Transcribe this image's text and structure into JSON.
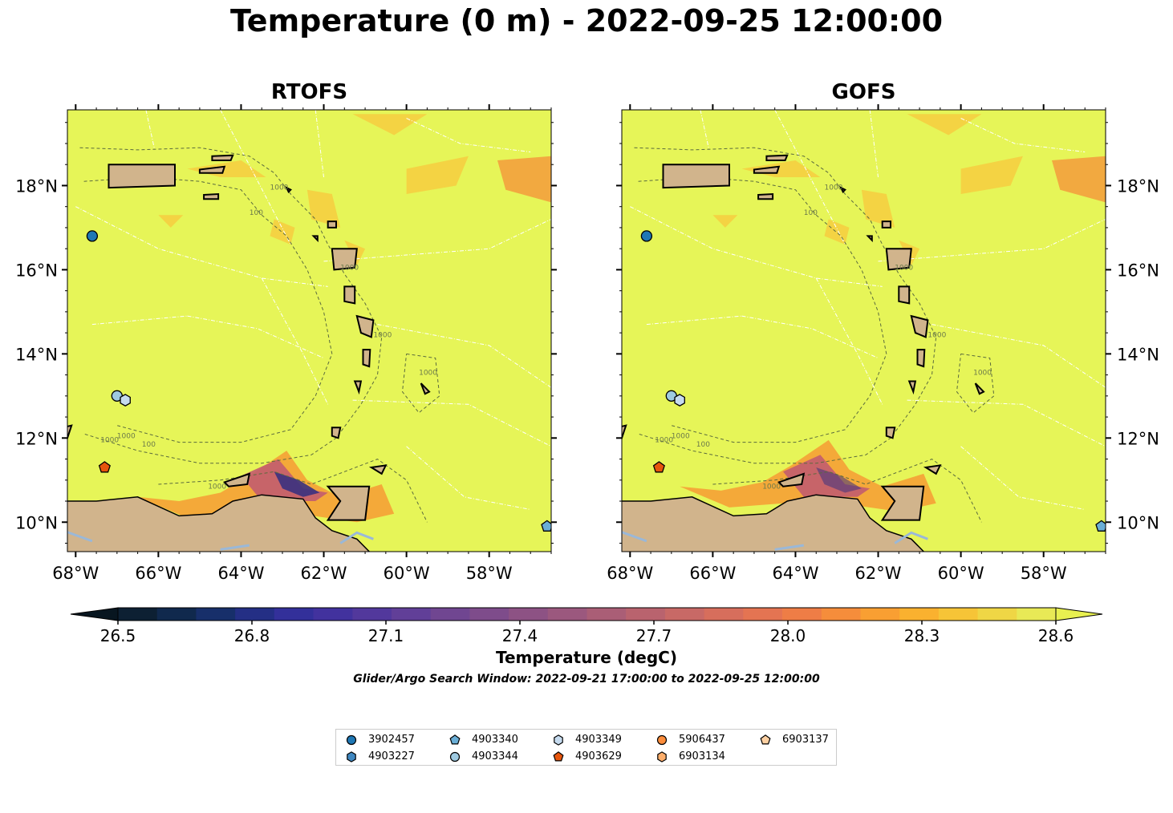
{
  "title": "Temperature (0 m) - 2022-09-25 12:00:00",
  "chart_data": [
    {
      "type": "heatmap",
      "title": "RTOFS",
      "variable": "Temperature (0 m)",
      "x_ticks": [
        "68°W",
        "66°W",
        "64°W",
        "62°W",
        "60°W",
        "58°W"
      ],
      "y_ticks": [
        "10°N",
        "12°N",
        "14°N",
        "16°N",
        "18°N"
      ],
      "xlim": [
        -68.2,
        -56.5
      ],
      "ylim": [
        9.3,
        19.8
      ],
      "contour_labels": [
        "1000",
        "1000",
        "1000",
        "100",
        "1000",
        "1000",
        "1000",
        "1000",
        "100"
      ]
    },
    {
      "type": "heatmap",
      "title": "GOFS",
      "variable": "Temperature (0 m)",
      "x_ticks": [
        "68°W",
        "66°W",
        "64°W",
        "62°W",
        "60°W",
        "58°W"
      ],
      "y_ticks": [
        "10°N",
        "12°N",
        "14°N",
        "16°N",
        "18°N"
      ],
      "xlim": [
        -68.2,
        -56.5
      ],
      "ylim": [
        9.3,
        19.8
      ],
      "contour_labels": [
        "1000",
        "1000",
        "1000",
        "100",
        "1000",
        "1000",
        "1000",
        "1000",
        "100"
      ]
    }
  ],
  "colorbar": {
    "label": "Temperature (degC)",
    "min": 26.4,
    "max": 28.7,
    "ticks": [
      "26.5",
      "26.8",
      "27.1",
      "27.4",
      "27.7",
      "28.0",
      "28.3",
      "28.6"
    ],
    "colors": [
      "#0d2033",
      "#10294d",
      "#172f6a",
      "#242f85",
      "#33309a",
      "#42329e",
      "#52389c",
      "#613f98",
      "#704691",
      "#7e4c8b",
      "#8d5284",
      "#9b587e",
      "#aa5e76",
      "#b9636e",
      "#c86966",
      "#d76e5c",
      "#e47452",
      "#ee7d46",
      "#f58d3b",
      "#f99f32",
      "#fab12f",
      "#f6c437",
      "#efd645",
      "#e8e956"
    ]
  },
  "note": "Glider/Argo Search Window: 2022-09-21 17:00:00 to 2022-09-25 12:00:00",
  "colors": {
    "land": "#d1b48c",
    "sea": "#e6f558",
    "river": "#9ab8d8",
    "eez": "#ffffff"
  },
  "platforms": [
    {
      "id": "3902457",
      "marker": "circle",
      "color": "#1f77b4",
      "lon": -67.6,
      "lat": 16.8
    },
    {
      "id": "4903227",
      "marker": "hexagon",
      "color": "#3f87c0",
      "lon": null,
      "lat": null
    },
    {
      "id": "4903340",
      "marker": "pentagon",
      "color": "#6aaed6",
      "lon": -56.6,
      "lat": 9.9
    },
    {
      "id": "4903344",
      "marker": "circle",
      "color": "#9ecae1",
      "lon": -67.0,
      "lat": 13.0
    },
    {
      "id": "4903349",
      "marker": "hexagon",
      "color": "#c6dbef",
      "lon": -66.8,
      "lat": 12.9
    },
    {
      "id": "4903629",
      "marker": "pentagon",
      "color": "#e6550d",
      "lon": -67.3,
      "lat": 11.3
    },
    {
      "id": "5906437",
      "marker": "circle",
      "color": "#fd8d3c",
      "lon": null,
      "lat": null
    },
    {
      "id": "6903134",
      "marker": "hexagon",
      "color": "#fdae6b",
      "lon": null,
      "lat": null
    },
    {
      "id": "6903137",
      "marker": "pentagon",
      "color": "#fdd0a2",
      "lon": null,
      "lat": null
    }
  ]
}
